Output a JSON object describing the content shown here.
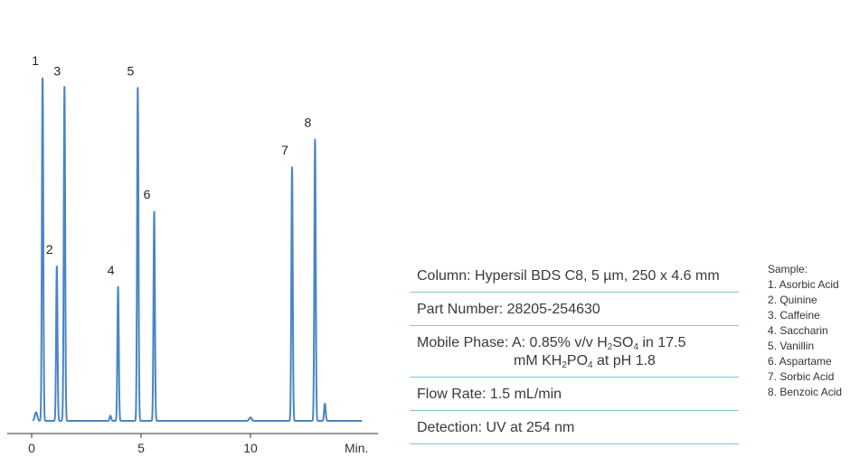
{
  "chart_data": {
    "type": "line",
    "x_axis": {
      "ticks": [
        0,
        5,
        10
      ],
      "unit_label": "Min.",
      "range": [
        -1,
        15.5
      ]
    },
    "peaks": [
      {
        "label": "1",
        "rt": 0.5,
        "height": 1.0
      },
      {
        "label": "2",
        "rt": 1.15,
        "height": 0.45
      },
      {
        "label": "3",
        "rt": 1.5,
        "height": 0.97
      },
      {
        "label": "4",
        "rt": 3.95,
        "height": 0.39
      },
      {
        "label": "5",
        "rt": 4.85,
        "height": 0.97
      },
      {
        "label": "6",
        "rt": 5.6,
        "height": 0.61
      },
      {
        "label": "7",
        "rt": 11.9,
        "height": 0.74
      },
      {
        "label": "8",
        "rt": 12.95,
        "height": 0.82
      }
    ],
    "color": "#4a86c5"
  },
  "conditions": {
    "column": "Column: Hypersil BDS C8, 5 µm, 250 x 4.6 mm",
    "part_number": "Part Number: 28205-254630",
    "mobile_phase": {
      "prefix": "Mobile Phase:  A: 0.85% v/v H",
      "sub1": "2",
      "mid": "SO",
      "sub2": "4",
      "suffix": " in 17.5",
      "line2_prefix": "mM KH",
      "line2_sub1": "2",
      "line2_mid": "PO",
      "line2_sub2": "4",
      "line2_suffix": " at pH 1.8"
    },
    "flow_rate": "Flow Rate: 1.5 mL/min",
    "detection": "Detection: UV at 254 nm"
  },
  "sample": {
    "title": "Sample:",
    "items": [
      "1. Asorbic Acid",
      "2. Quinine",
      "3. Caffeine",
      "4. Saccharin",
      "5. Vanillin",
      "6. Aspartame",
      "7. Sorbic Acid",
      "8. Benzoic Acid"
    ]
  }
}
